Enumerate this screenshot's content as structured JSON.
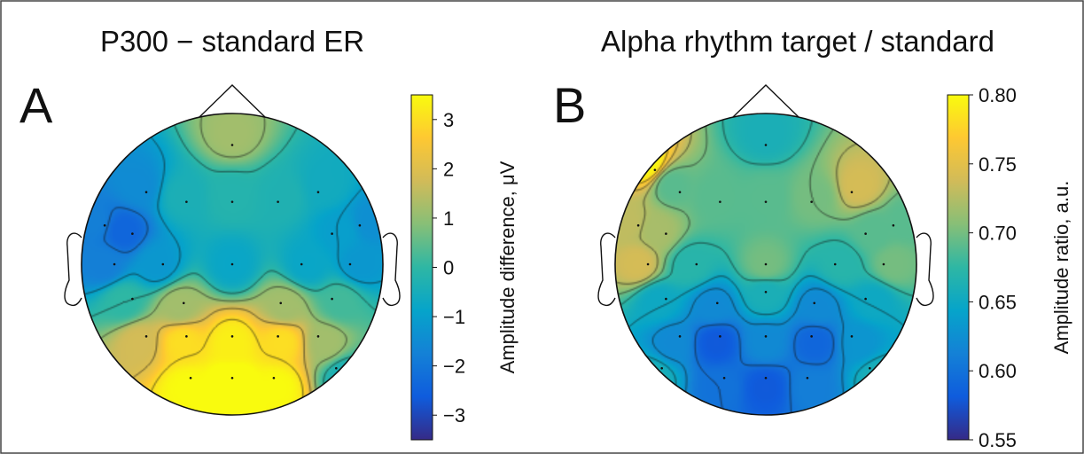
{
  "chart_data": [
    {
      "type": "heatmap",
      "panel_letter": "A",
      "title": "P300 − standard ER",
      "colorbar": {
        "label": "Amplitude difference, μV",
        "range": [
          -3.5,
          3.5
        ],
        "ticks": [
          "3",
          "2",
          "1",
          "0",
          "−1",
          "−2",
          "−3"
        ],
        "tick_values": [
          3,
          2,
          1,
          0,
          -1,
          -2,
          -3
        ]
      },
      "electrodes": [
        {
          "x": 0.0,
          "y": 0.86,
          "value": 1.2
        },
        {
          "x": -0.62,
          "y": 0.52,
          "value": -1.5
        },
        {
          "x": -0.33,
          "y": 0.45,
          "value": -0.4
        },
        {
          "x": 0.0,
          "y": 0.45,
          "value": -0.2
        },
        {
          "x": 0.33,
          "y": 0.45,
          "value": -0.3
        },
        {
          "x": 0.62,
          "y": 0.52,
          "value": -0.6
        },
        {
          "x": -0.92,
          "y": 0.28,
          "value": -1.8
        },
        {
          "x": -0.72,
          "y": 0.22,
          "value": -2.4
        },
        {
          "x": 0.72,
          "y": 0.22,
          "value": -1.0
        },
        {
          "x": 0.92,
          "y": 0.28,
          "value": -1.4
        },
        {
          "x": -0.85,
          "y": 0.0,
          "value": -1.8
        },
        {
          "x": -0.5,
          "y": 0.0,
          "value": -1.2
        },
        {
          "x": 0.0,
          "y": 0.0,
          "value": -0.8
        },
        {
          "x": 0.5,
          "y": 0.0,
          "value": -0.8
        },
        {
          "x": 0.85,
          "y": 0.0,
          "value": -1.2
        },
        {
          "x": -0.72,
          "y": -0.25,
          "value": 0.0
        },
        {
          "x": -0.35,
          "y": -0.28,
          "value": 1.2
        },
        {
          "x": 0.35,
          "y": -0.28,
          "value": 1.2
        },
        {
          "x": 0.72,
          "y": -0.25,
          "value": 0.2
        },
        {
          "x": -0.62,
          "y": -0.52,
          "value": 1.8
        },
        {
          "x": -0.33,
          "y": -0.52,
          "value": 3.0
        },
        {
          "x": 0.0,
          "y": -0.52,
          "value": 3.3
        },
        {
          "x": 0.33,
          "y": -0.52,
          "value": 3.0
        },
        {
          "x": 0.62,
          "y": -0.52,
          "value": 1.2
        },
        {
          "x": -0.3,
          "y": -0.82,
          "value": 3.5
        },
        {
          "x": 0.0,
          "y": -0.82,
          "value": 4.0
        },
        {
          "x": 0.3,
          "y": -0.82,
          "value": 3.5
        },
        {
          "x": 0.75,
          "y": -0.75,
          "value": -0.4
        }
      ]
    },
    {
      "type": "heatmap",
      "panel_letter": "B",
      "title": "Alpha rhythm target / standard",
      "colorbar": {
        "label": "Amplitude ratio, a.u.",
        "range": [
          0.55,
          0.8
        ],
        "ticks": [
          "0.80",
          "0.75",
          "0.70",
          "0.65",
          "0.60",
          "0.55"
        ],
        "tick_values": [
          0.8,
          0.75,
          0.7,
          0.65,
          0.6,
          0.55
        ]
      },
      "electrodes": [
        {
          "x": 0.0,
          "y": 0.86,
          "value": 0.66
        },
        {
          "x": -0.62,
          "y": 0.52,
          "value": 0.69
        },
        {
          "x": -0.33,
          "y": 0.45,
          "value": 0.69
        },
        {
          "x": 0.0,
          "y": 0.45,
          "value": 0.69
        },
        {
          "x": 0.33,
          "y": 0.45,
          "value": 0.7
        },
        {
          "x": 0.62,
          "y": 0.52,
          "value": 0.74
        },
        {
          "x": -0.8,
          "y": 0.68,
          "value": 0.8
        },
        {
          "x": -0.92,
          "y": 0.28,
          "value": 0.73
        },
        {
          "x": -0.72,
          "y": 0.22,
          "value": 0.72
        },
        {
          "x": 0.72,
          "y": 0.22,
          "value": 0.69
        },
        {
          "x": 0.92,
          "y": 0.28,
          "value": 0.69
        },
        {
          "x": -0.85,
          "y": 0.0,
          "value": 0.74
        },
        {
          "x": -0.5,
          "y": 0.0,
          "value": 0.67
        },
        {
          "x": 0.0,
          "y": 0.0,
          "value": 0.7
        },
        {
          "x": 0.5,
          "y": 0.0,
          "value": 0.67
        },
        {
          "x": 0.85,
          "y": 0.0,
          "value": 0.7
        },
        {
          "x": -0.72,
          "y": -0.25,
          "value": 0.65
        },
        {
          "x": -0.35,
          "y": -0.28,
          "value": 0.62
        },
        {
          "x": 0.0,
          "y": -0.2,
          "value": 0.66
        },
        {
          "x": 0.35,
          "y": -0.28,
          "value": 0.62
        },
        {
          "x": 0.72,
          "y": -0.25,
          "value": 0.65
        },
        {
          "x": -0.62,
          "y": -0.52,
          "value": 0.62
        },
        {
          "x": -0.33,
          "y": -0.52,
          "value": 0.58
        },
        {
          "x": 0.0,
          "y": -0.52,
          "value": 0.62
        },
        {
          "x": 0.33,
          "y": -0.52,
          "value": 0.59
        },
        {
          "x": 0.62,
          "y": -0.52,
          "value": 0.63
        },
        {
          "x": -0.3,
          "y": -0.82,
          "value": 0.6
        },
        {
          "x": 0.0,
          "y": -0.82,
          "value": 0.58
        },
        {
          "x": 0.3,
          "y": -0.82,
          "value": 0.61
        },
        {
          "x": -0.75,
          "y": -0.75,
          "value": 0.66
        },
        {
          "x": 0.75,
          "y": -0.75,
          "value": 0.66
        }
      ]
    }
  ],
  "colormap": [
    "#352a87",
    "#0f5cdd",
    "#1481d6",
    "#06a4ca",
    "#2eb7a4",
    "#87bf77",
    "#d1bb59",
    "#fec832",
    "#f9fb0e"
  ]
}
